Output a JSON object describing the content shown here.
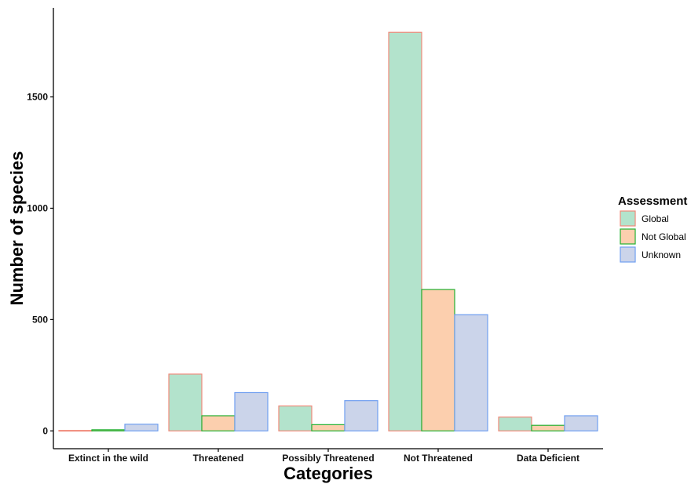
{
  "chart_data": {
    "type": "bar",
    "title": "",
    "xlabel": "Categories",
    "ylabel": "Number of species",
    "ylim": [
      -80,
      1900
    ],
    "yticks": [
      0,
      500,
      1000,
      1500
    ],
    "grid": false,
    "legend": {
      "title": "Assessment",
      "position": "right"
    },
    "categories": [
      "Extinct in the wild",
      "Threatened",
      "Possibly Threatened",
      "Not Threatened",
      "Data Deficient"
    ],
    "series": [
      {
        "name": "Global",
        "fill": "#b3e3cc",
        "stroke": "#f08878",
        "values": [
          2,
          255,
          112,
          1790,
          62
        ]
      },
      {
        "name": "Not Global",
        "fill": "#fccfae",
        "stroke": "#22b030",
        "values": [
          5,
          68,
          28,
          635,
          25
        ]
      },
      {
        "name": "Unknown",
        "fill": "#cbd4ea",
        "stroke": "#6f9ef0",
        "values": [
          30,
          172,
          136,
          522,
          68
        ]
      }
    ]
  }
}
